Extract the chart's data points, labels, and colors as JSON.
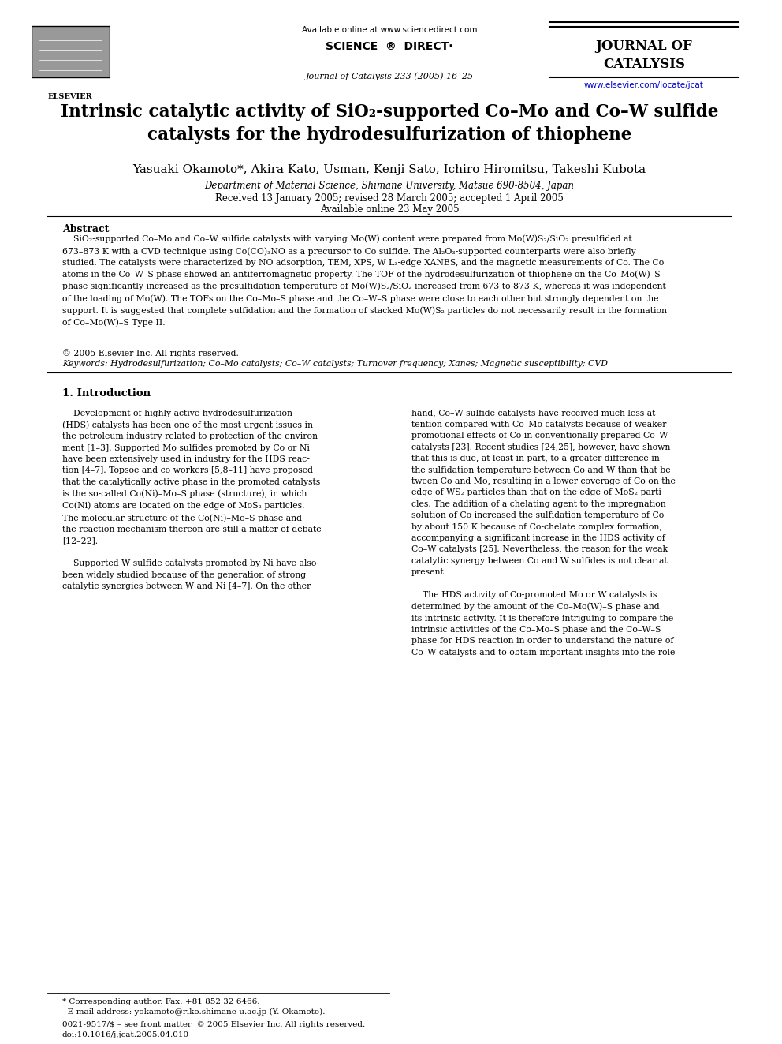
{
  "bg_color": "#ffffff",
  "header": {
    "available_online": "Available online at www.sciencedirect.com",
    "journal_name_line1": "JOURNAL OF",
    "journal_name_line2": "CATALYSIS",
    "journal_ref": "Journal of Catalysis 233 (2005) 16–25",
    "website": "www.elsevier.com/locate/jcat"
  },
  "title": "Intrinsic catalytic activity of SiO₂-supported Co–Mo and Co–W sulfide\ncatalysts for the hydrodesulfurization of thiophene",
  "authors": "Yasuaki Okamoto*, Akira Kato, Usman, Kenji Sato, Ichiro Hiromitsu, Takeshi Kubota",
  "affiliation": "Department of Material Science, Shimane University, Matsue 690-8504, Japan",
  "received": "Received 13 January 2005; revised 28 March 2005; accepted 1 April 2005",
  "available_online_date": "Available online 23 May 2005",
  "abstract_title": "Abstract",
  "copyright": "© 2005 Elsevier Inc. All rights reserved.",
  "keywords": "Keywords: Hydrodesulfurization; Co–Mo catalysts; Co–W catalysts; Turnover frequency; Xanes; Magnetic susceptibility; CVD",
  "section1_title": "1. Introduction",
  "footer_note1": "* Corresponding author. Fax: +81 852 32 6466.",
  "footer_note2": "  E-mail address: yokamoto@riko.shimane-u.ac.jp (Y. Okamoto).",
  "footer_note3": "0021-9517/$ – see front matter  © 2005 Elsevier Inc. All rights reserved.",
  "footer_note4": "doi:10.1016/j.jcat.2005.04.010"
}
